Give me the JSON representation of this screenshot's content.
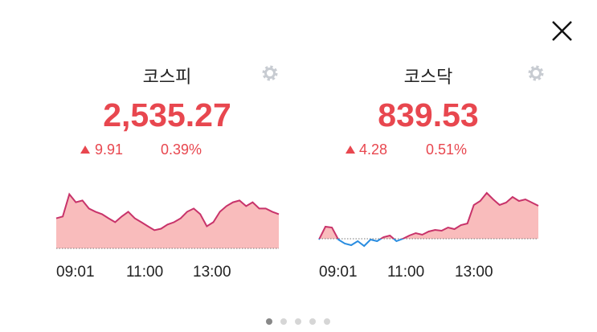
{
  "chart_data": [
    {
      "type": "line",
      "title": "코스피",
      "price": "2,535.27",
      "change": "9.91",
      "percent": "0.39%",
      "color": "#c8336a",
      "fill": "#f9bcbc",
      "down_color": "#2a8de0",
      "baseline": 2525.36,
      "ylim": [
        2525.36,
        2545.4
      ],
      "xticks": [
        "09:01",
        "11:00",
        "13:00"
      ],
      "values": [
        2535.5,
        2536.1,
        2543.6,
        2540.9,
        2541.5,
        2538.8,
        2537.7,
        2536.9,
        2535.5,
        2534.2,
        2536.1,
        2537.7,
        2535.5,
        2534.2,
        2532.8,
        2531.5,
        2532.0,
        2533.4,
        2534.2,
        2535.5,
        2537.7,
        2538.8,
        2536.9,
        2532.8,
        2534.2,
        2537.7,
        2539.6,
        2540.9,
        2541.5,
        2539.6,
        2540.9,
        2538.8,
        2538.8,
        2537.7,
        2536.9
      ]
    },
    {
      "type": "line",
      "title": "코스닥",
      "price": "839.53",
      "change": "4.28",
      "percent": "0.51%",
      "color": "#c8336a",
      "fill": "#f9bcbc",
      "down_color": "#2a8de0",
      "baseline": 835.25,
      "ylim": [
        834.05,
        841.45
      ],
      "xticks": [
        "09:01",
        "11:00",
        "13:00"
      ],
      "values": [
        835.15,
        836.75,
        836.65,
        835.15,
        834.65,
        834.45,
        834.95,
        834.35,
        835.15,
        834.95,
        835.45,
        835.65,
        834.95,
        835.25,
        835.65,
        835.95,
        835.75,
        836.15,
        836.35,
        836.25,
        836.65,
        836.45,
        836.95,
        837.15,
        839.45,
        839.95,
        840.95,
        840.15,
        839.45,
        839.75,
        840.45,
        839.95,
        840.15,
        839.75,
        839.35
      ]
    }
  ]
}
